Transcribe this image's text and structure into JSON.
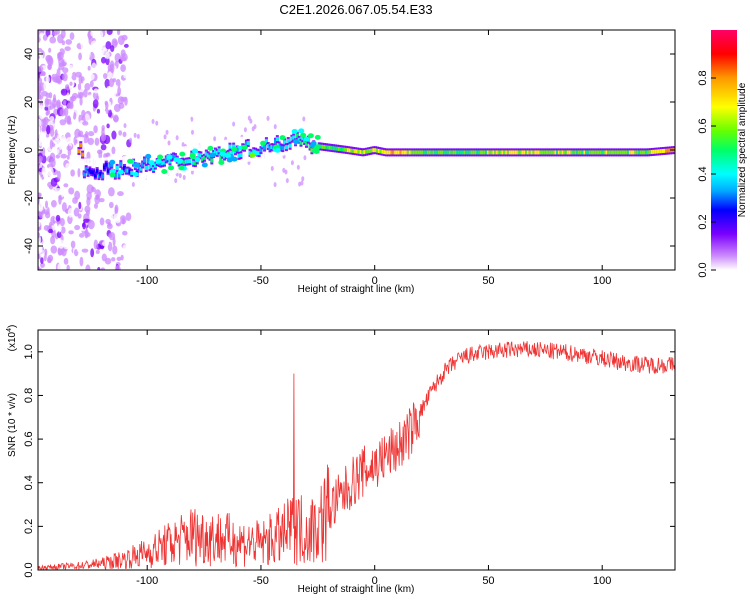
{
  "chart_data": [
    {
      "type": "heatmap",
      "title": "C2E1.2026.067.05.54.E33",
      "xlabel": "Height of straight line (km)",
      "ylabel": "Frequency (Hz)",
      "xlim": [
        -148,
        132
      ],
      "ylim": [
        -50,
        50
      ],
      "xticks": [
        -100,
        -50,
        0,
        50,
        100
      ],
      "yticks": [
        40,
        20,
        0,
        -20,
        -40
      ],
      "colorbar": {
        "label": "Normalized spectral amplitude",
        "range": [
          0.0,
          1.0
        ],
        "ticks": [
          0.0,
          0.2,
          0.4,
          0.6,
          0.8
        ],
        "colormap": [
          "#ffffff",
          "#cc88ff",
          "#7a00ff",
          "#0000ff",
          "#00aaff",
          "#00ffff",
          "#00ff66",
          "#66ff00",
          "#ffff00",
          "#ff9900",
          "#ff0000",
          "#ff0066"
        ]
      },
      "ridge": {
        "x": [
          -128,
          -110,
          -95,
          -85,
          -70,
          -60,
          -50,
          -40,
          -33,
          -28,
          -20,
          -12,
          -5,
          0,
          5,
          10,
          20,
          40,
          60,
          80,
          100,
          120,
          132
        ],
        "y": [
          -9,
          -8,
          -6,
          -4,
          -2,
          0,
          1,
          3,
          6,
          2,
          1,
          0,
          -1,
          0,
          -1,
          -1,
          -1,
          -1,
          -1,
          -1,
          -1,
          -1,
          0
        ],
        "amplitude": [
          0.35,
          0.4,
          0.45,
          0.5,
          0.55,
          0.5,
          0.45,
          0.5,
          0.55,
          0.6,
          0.6,
          0.7,
          0.75,
          0.7,
          0.75,
          0.8,
          0.65,
          0.6,
          0.75,
          0.7,
          0.65,
          0.7,
          0.9
        ]
      }
    },
    {
      "type": "line",
      "xlabel": "Height of straight line (km)",
      "ylabel": "SNR (10 * v/v)",
      "yunit_multiplier": "(x10",
      "yunit_exponent": "4",
      "xlim": [
        -148,
        132
      ],
      "ylim": [
        0.0,
        1.1
      ],
      "xticks": [
        -100,
        -50,
        0,
        50,
        100
      ],
      "yticks": [
        0.0,
        0.2,
        0.4,
        0.6,
        0.8,
        1.0
      ],
      "ytick_labels": [
        "0.0",
        "0.2",
        "0.4",
        "0.6",
        "0.8",
        "1.0"
      ],
      "color": "#ee3333",
      "series": [
        {
          "x": [
            -148,
            -130,
            -120,
            -110,
            -100,
            -90,
            -80,
            -70,
            -60,
            -50,
            -40,
            -35,
            -30,
            -25,
            -20,
            -15,
            -10,
            -5,
            0,
            5,
            10,
            15,
            20,
            25,
            30,
            35,
            40,
            50,
            60,
            70,
            80,
            90,
            100,
            110,
            120,
            132
          ],
          "y": [
            0.01,
            0.02,
            0.03,
            0.05,
            0.08,
            0.12,
            0.16,
            0.15,
            0.13,
            0.12,
            0.16,
            0.2,
            0.18,
            0.2,
            0.28,
            0.33,
            0.4,
            0.45,
            0.48,
            0.52,
            0.56,
            0.62,
            0.72,
            0.82,
            0.9,
            0.95,
            0.98,
            1.0,
            1.01,
            1.01,
            1.0,
            0.99,
            0.97,
            0.95,
            0.94,
            0.94
          ]
        }
      ]
    }
  ]
}
